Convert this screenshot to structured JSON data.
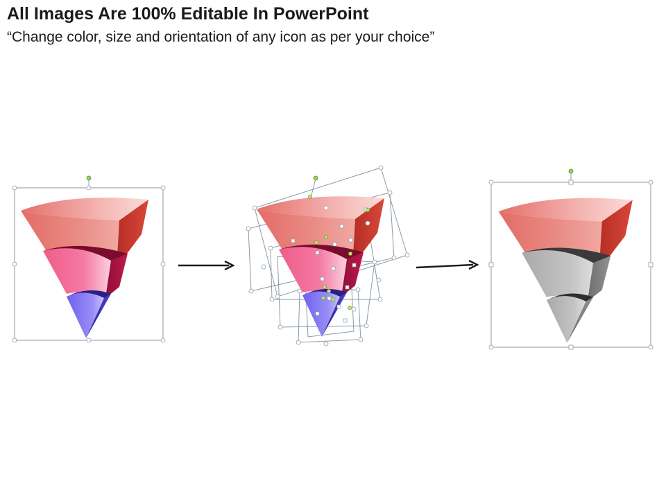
{
  "header": {
    "title": "All Images Are 100% Editable In PowerPoint",
    "subtitle": "“Change color, size and orientation of any icon as per your choice”"
  },
  "colors": {
    "red_top": "#e5726d",
    "red_side": "#c0392b",
    "pink_front": "#f0608c",
    "pink_side": "#a8123f",
    "blue_front": "#7a6cf0",
    "blue_side": "#3d2fb8",
    "gray_front": "#b5b5b5",
    "gray_side": "#7d7d7d",
    "handle_green": "#9bd35a",
    "selection_line": "#8a9aa6"
  },
  "stages": [
    {
      "name": "original",
      "colored_segments": [
        "red",
        "pink",
        "blue"
      ]
    },
    {
      "name": "ungrouped",
      "colored_segments": [
        "red",
        "pink",
        "blue"
      ]
    },
    {
      "name": "recolored",
      "colored_segments": [
        "red",
        "gray",
        "gray"
      ]
    }
  ]
}
